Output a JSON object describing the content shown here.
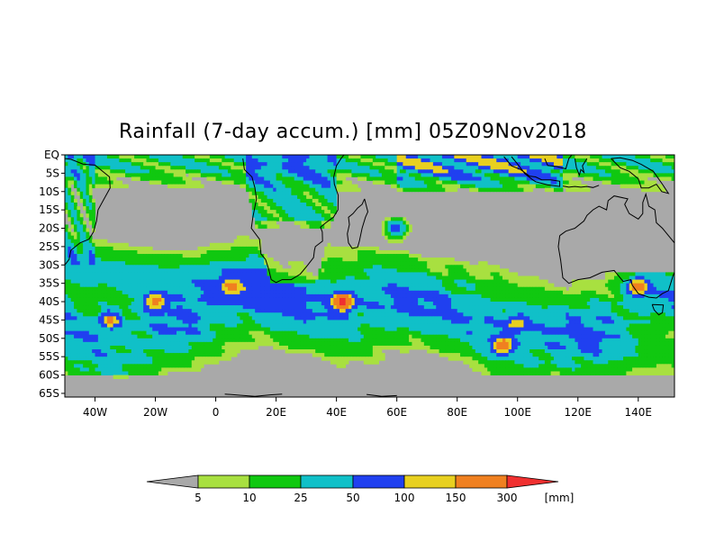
{
  "title": "Rainfall (7-day accum.) [mm] 05Z09Nov2018",
  "map": {
    "lat_labels": [
      "EQ",
      "5S",
      "10S",
      "15S",
      "20S",
      "25S",
      "30S",
      "35S",
      "40S",
      "45S",
      "50S",
      "55S",
      "60S",
      "65S"
    ],
    "lon_labels": [
      "40W",
      "20W",
      "0",
      "20E",
      "40E",
      "60E",
      "80E",
      "100E",
      "120E",
      "140E"
    ],
    "land_color": "#a9a9a9",
    "rain_colors": {
      "under_5": "#a9a9a9",
      "5_10": "#a8e040",
      "10_25": "#10c810",
      "25_50": "#10c0c8",
      "50_100": "#2040f0",
      "100_150": "#e8d020",
      "150_300": "#f08020",
      "over_300": "#f03030"
    }
  },
  "colorbar": {
    "labels": [
      "5",
      "10",
      "25",
      "50",
      "100",
      "150",
      "300"
    ],
    "unit": "[mm]",
    "colors": [
      "#a9a9a9",
      "#a8e040",
      "#10c810",
      "#10c0c8",
      "#2040f0",
      "#e8d020",
      "#f08020",
      "#f03030"
    ]
  }
}
